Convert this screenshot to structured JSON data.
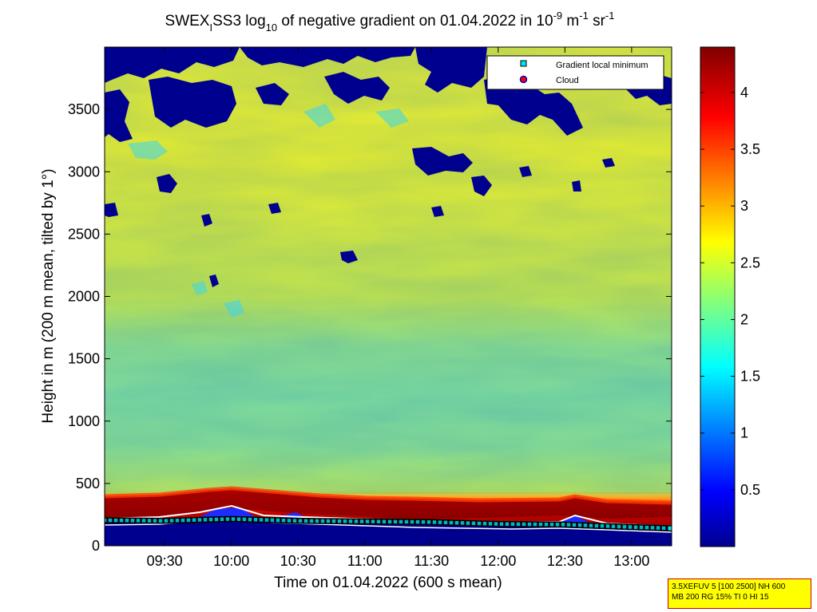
{
  "chart_data": {
    "type": "heatmap",
    "title": {
      "prefix": "SWEX",
      "prefix_sub": "I",
      "name": "SS3 log",
      "log_sub": "10",
      "middle": " of negative gradient on 01.04.2022 in 10",
      "exp1": "-9",
      "unit1": " m",
      "exp2": "-1",
      "unit2": " sr",
      "exp3": "-1"
    },
    "xlabel": "Time on 01.04.2022 (600 s mean)",
    "ylabel": "Height in m (200 m mean, tilted by 1°)",
    "x_ticks": [
      "09:30",
      "10:00",
      "10:30",
      "11:00",
      "11:30",
      "12:00",
      "12:30",
      "13:00"
    ],
    "x_tick_values": [
      9.5,
      10.0,
      10.5,
      11.0,
      11.5,
      12.0,
      12.5,
      13.0
    ],
    "xlim": [
      9.05,
      13.3
    ],
    "y_ticks": [
      "0",
      "500",
      "1000",
      "1500",
      "2000",
      "2500",
      "3000",
      "3500"
    ],
    "y_tick_values": [
      0,
      500,
      1000,
      1500,
      2000,
      2500,
      3000,
      3500
    ],
    "ylim": [
      0,
      4000
    ],
    "colorbar": {
      "ticks": [
        "0.5",
        "1",
        "1.5",
        "2",
        "2.5",
        "3",
        "3.5",
        "4"
      ],
      "tick_values": [
        0.5,
        1,
        1.5,
        2,
        2.5,
        3,
        3.5,
        4
      ],
      "range": [
        0,
        4.4
      ],
      "colormap": "jet"
    },
    "legend": {
      "position": "top-right",
      "entries": [
        {
          "label": "Gradient local minimum",
          "marker": "square",
          "color": "#00e5ee"
        },
        {
          "label": "Cloud",
          "marker": "circle",
          "color": "#ff0000"
        }
      ]
    },
    "field_bands": [
      {
        "height_range": [
          0,
          160
        ],
        "value": 0.05,
        "label": "surface (dark blue)"
      },
      {
        "height_range": [
          160,
          330
        ],
        "value": 4.3,
        "label": "strong gradient layer (dark red)"
      },
      {
        "height_range": [
          330,
          420
        ],
        "value": 3.2,
        "label": "transition"
      },
      {
        "height_range": [
          420,
          2000
        ],
        "value": 1.9,
        "label": "cyan-green boundary region"
      },
      {
        "height_range": [
          2000,
          3000
        ],
        "value": 2.55,
        "label": "green-yellow"
      },
      {
        "height_range": [
          3000,
          3950
        ],
        "value": 2.4,
        "label": "yellow with dark-blue gaps"
      }
    ],
    "gradient_minimum_height_m": [
      [
        9.05,
        205
      ],
      [
        9.5,
        200
      ],
      [
        10.0,
        215
      ],
      [
        10.5,
        200
      ],
      [
        11.0,
        195
      ],
      [
        11.5,
        190
      ],
      [
        12.0,
        175
      ],
      [
        12.5,
        170
      ],
      [
        13.0,
        150
      ],
      [
        13.3,
        140
      ]
    ]
  },
  "info": {
    "line1": "3.5XEFUV 5 [100 2500] NH 600",
    "line2": "MB 200 RG 15% TI 0 HI 15"
  }
}
